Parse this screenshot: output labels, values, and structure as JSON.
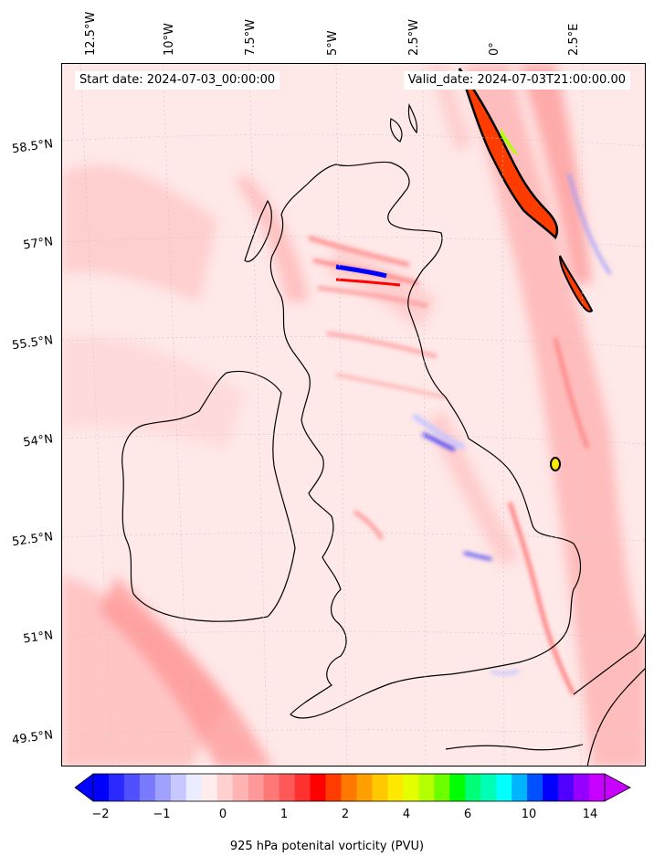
{
  "header": {
    "start_date": "Start date: 2024-07-03_00:00:00",
    "valid_date": "Valid_date: 2024-07-03T21:00:00.00"
  },
  "longitude_labels": [
    "12.5°W",
    "10°W",
    "7.5°W",
    "5°W",
    "2.5°W",
    "0°",
    "2.5°E"
  ],
  "latitude_labels": [
    "58.5°N",
    "57°N",
    "55.5°N",
    "54°N",
    "52.5°N",
    "51°N",
    "49.5°N"
  ],
  "colorbar": {
    "label": "925 hPa potenital vorticity (PVU)",
    "ticks": [
      "−2",
      "−1",
      "0",
      "1",
      "2",
      "4",
      "6",
      "10",
      "14"
    ],
    "colors": [
      "#0000ff",
      "#2a2aff",
      "#5050ff",
      "#7a7aff",
      "#a0a0ff",
      "#c8c8ff",
      "#ececff",
      "#ffecec",
      "#ffd0d0",
      "#ffb4b4",
      "#ff9898",
      "#ff7878",
      "#ff5858",
      "#ff3030",
      "#ff0000",
      "#ff3c00",
      "#ff7800",
      "#ffa000",
      "#ffc800",
      "#ffe800",
      "#e4ff00",
      "#b4ff00",
      "#6cff00",
      "#00ff00",
      "#00ff78",
      "#00ffb4",
      "#00ffff",
      "#00b4ff",
      "#0050ff",
      "#0000ff",
      "#5000ff",
      "#9600ff",
      "#c800ff"
    ]
  },
  "legend_colors": {
    "background_field": "#ffe6e6",
    "light_band": "#ffc8c8",
    "strong_band": "#ff8080",
    "coastline": "#000000"
  }
}
